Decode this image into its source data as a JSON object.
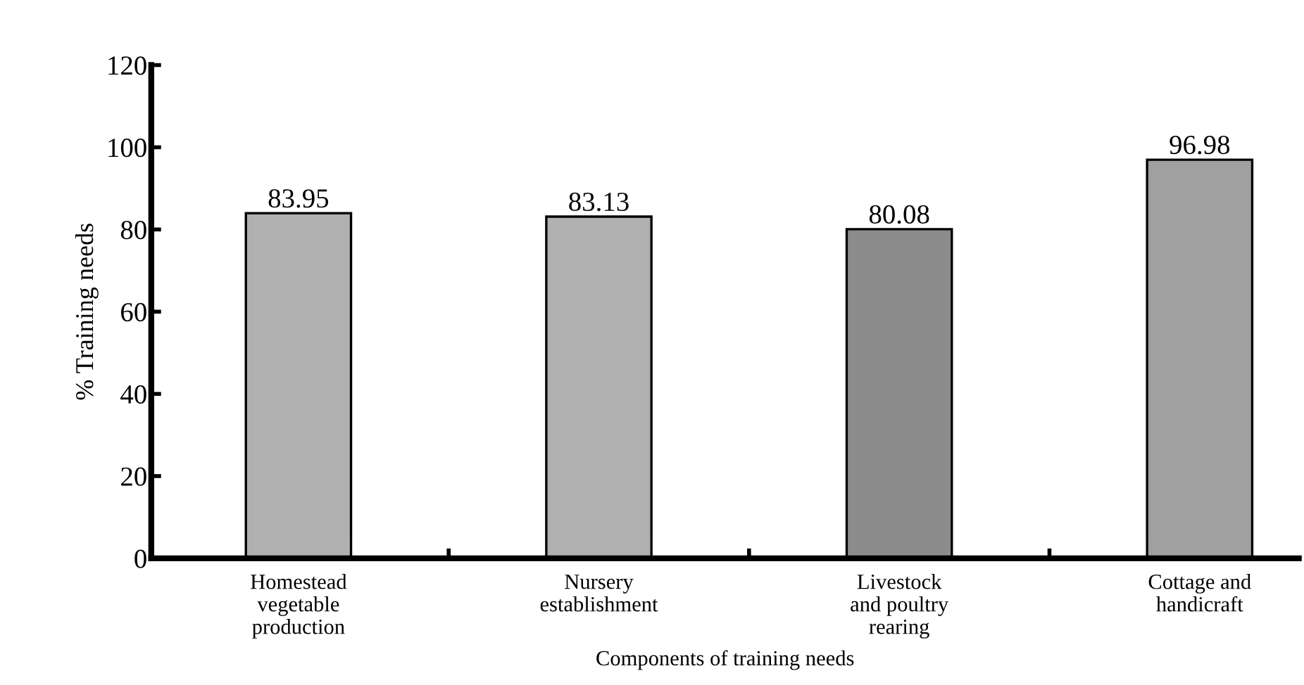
{
  "chart_data": {
    "type": "bar",
    "xlabel": "Components of training needs",
    "ylabel": "% Training needs",
    "categories": [
      "Homestead\nvegetable\nproduction",
      "Nursery\nestablishment",
      "Livestock\nand poultry\nrearing",
      "Cottage and\nhandicraft"
    ],
    "values": [
      83.95,
      83.13,
      80.08,
      96.98
    ],
    "colors": [
      "#b0b0b0",
      "#b0b0b0",
      "#8c8c8c",
      "#a0a0a0"
    ],
    "ylim": [
      0,
      120
    ],
    "yticks": [
      0,
      20,
      40,
      60,
      80,
      100,
      120
    ],
    "data_labels": true,
    "grid": false
  }
}
